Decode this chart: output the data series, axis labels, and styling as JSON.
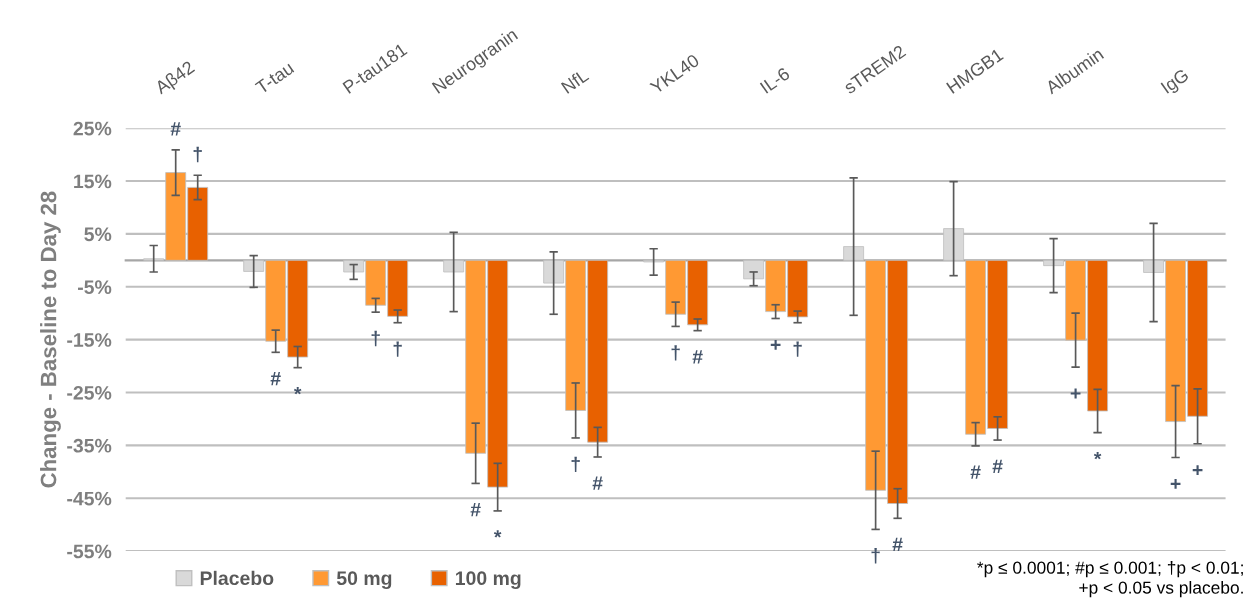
{
  "chart_data": {
    "type": "bar",
    "ylabel": "Change - Baseline to Day 28",
    "categories": [
      "Aβ42",
      "T-tau",
      "P-tau181",
      "Neurogranin",
      "NfL",
      "YKL40",
      "IL-6",
      "sTREM2",
      "HMGB1",
      "Albumin",
      "IgG"
    ],
    "series": [
      {
        "name": "Placebo",
        "color": "#d9d9d9",
        "values": [
          0.3,
          -2.1,
          -2.2,
          -2.2,
          -4.3,
          -0.3,
          -3.5,
          2.6,
          6.0,
          -1.0,
          -2.3
        ],
        "errors": [
          2.5,
          3.0,
          1.4,
          7.5,
          5.9,
          2.5,
          1.3,
          13.0,
          8.9,
          5.1,
          9.3
        ]
      },
      {
        "name": "50 mg",
        "color": "#ff9933",
        "values": [
          16.6,
          -15.3,
          -8.5,
          -36.5,
          -28.4,
          -10.2,
          -9.7,
          -43.5,
          -32.9,
          -15.1,
          -30.5
        ],
        "errors": [
          4.3,
          2.1,
          1.3,
          5.7,
          5.2,
          2.3,
          1.3,
          7.4,
          2.2,
          5.1,
          6.8
        ]
      },
      {
        "name": "100 mg",
        "color": "#e86100",
        "values": [
          13.8,
          -18.3,
          -10.6,
          -42.9,
          -34.4,
          -12.2,
          -10.7,
          -46.0,
          -31.8,
          -28.5,
          -29.5
        ],
        "errors": [
          2.3,
          2.0,
          1.2,
          4.5,
          2.8,
          1.1,
          1.1,
          2.8,
          2.2,
          4.1,
          5.2
        ]
      }
    ],
    "ylim": [
      -55,
      25
    ],
    "yticks": [
      {
        "value": 25,
        "label": "25%"
      },
      {
        "value": 15,
        "label": "15%"
      },
      {
        "value": 5,
        "label": "5%"
      },
      {
        "value": -5,
        "label": "-5%"
      },
      {
        "value": -15,
        "label": "-15%"
      },
      {
        "value": -25,
        "label": "-25%"
      },
      {
        "value": -35,
        "label": "-35%"
      },
      {
        "value": -45,
        "label": "-45%"
      },
      {
        "value": -55,
        "label": "-55%"
      }
    ],
    "grid": "y",
    "legend": "bottom left",
    "annotations": [
      "#",
      "†",
      "#",
      "*",
      "†",
      "†",
      "#",
      "*",
      "†",
      "#",
      "†",
      "#",
      "+",
      "†",
      "†",
      "#",
      "#",
      "#",
      "+",
      "*",
      "+",
      "+",
      "*p ≤ 0.0001; #p ≤ 0.001; †p < 0.01;\n+p < 0.05 vs placebo."
    ]
  }
}
